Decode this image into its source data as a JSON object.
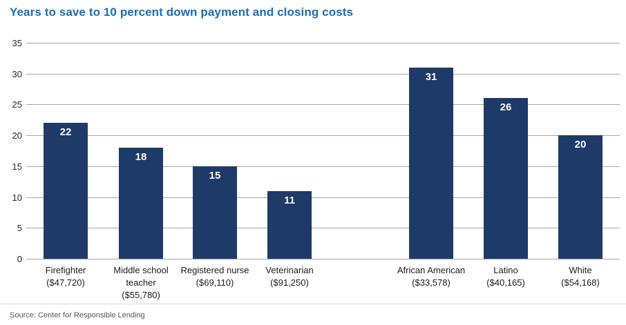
{
  "header": {
    "title": "Years to save to 10 percent down payment and closing costs"
  },
  "footer": {
    "source": "Source: Center for Responsible Lending"
  },
  "colors": {
    "background": "#ffffff",
    "bar": "#1e3a68",
    "title_text": "#1a6cb7",
    "grid": "#a6a6a6",
    "tick_text": "#262626",
    "category_text": "#1a1a1a",
    "value_label": "#ffffff",
    "divider": "#d9d9d9",
    "source_text": "#595959"
  },
  "chart_data": {
    "type": "bar",
    "title": "Years to save to 10 percent down payment and closing costs",
    "xlabel": "",
    "ylabel": "",
    "ylim": [
      0,
      35
    ],
    "yticks": [
      0,
      5,
      10,
      15,
      20,
      25,
      30,
      35
    ],
    "grid": "horizontal",
    "legend": "none",
    "categories": [
      "Firefighter ($47,720)",
      "Middle school teacher ($55,780)",
      "Registered nurse ($69,110)",
      "Veterinarian ($91,250)",
      "African American ($33,578)",
      "Latino ($40,165)",
      "White ($54,168)"
    ],
    "values": [
      22,
      18,
      15,
      11,
      31,
      26,
      20
    ],
    "bars": [
      {
        "label": "Firefighter",
        "salary": "($47,720)",
        "value": 22,
        "group": "occupation"
      },
      {
        "label": "Middle school teacher",
        "salary": "($55,780)",
        "value": 18,
        "group": "occupation"
      },
      {
        "label": "Registered nurse",
        "salary": "($69,110)",
        "value": 15,
        "group": "occupation"
      },
      {
        "label": "Veterinarian",
        "salary": "($91,250)",
        "value": 11,
        "group": "occupation"
      },
      {
        "label": "African American",
        "salary": "($33,578)",
        "value": 31,
        "group": "race-ethnicity"
      },
      {
        "label": "Latino",
        "salary": "($40,165)",
        "value": 26,
        "group": "race-ethnicity"
      },
      {
        "label": "White",
        "salary": "($54,168)",
        "value": 20,
        "group": "race-ethnicity"
      }
    ],
    "source": "Source: Center for Responsible Lending"
  }
}
